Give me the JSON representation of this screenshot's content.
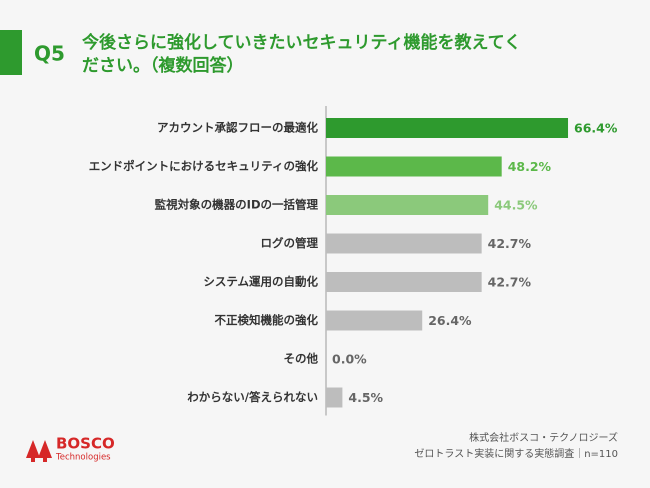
{
  "chart_data": {
    "type": "bar",
    "orientation": "horizontal",
    "label": "Q5",
    "title": [
      "今後さらに強化していきたいセキュリティ機能を教えてく",
      "ださい。（複数回答）"
    ],
    "categories": [
      "アカウント承認フローの最適化",
      "エンドポイントにおけるセキュリティの強化",
      "監視対象の機器のIDの一括管理",
      "ログの管理",
      "システム運用の自動化",
      "不正検知機能の強化",
      "その他",
      "わからない/答えられない"
    ],
    "values": [
      66.4,
      48.2,
      44.5,
      42.7,
      42.7,
      26.4,
      0.0,
      4.5
    ],
    "value_labels": [
      "66.4%",
      "48.2%",
      "44.5%",
      "42.7%",
      "42.7%",
      "26.4%",
      "0.0%",
      "4.5%"
    ],
    "colors": [
      "#2e9a2e",
      "#5cb84a",
      "#8bc97b",
      "#bdbdbd",
      "#bdbdbd",
      "#bdbdbd",
      "#bdbdbd",
      "#bdbdbd"
    ],
    "label_colors": [
      "#2e9a2e",
      "#5cb84a",
      "#8bc97b",
      "#666666",
      "#666666",
      "#666666",
      "#666666",
      "#666666"
    ],
    "xlim": [
      0,
      80
    ]
  },
  "logo": {
    "name": "BOSCO",
    "sub": "Technologies"
  },
  "source": [
    "株式会社ボスコ・テクノロジーズ",
    "ゼロトラスト実装に関する実態調査｜n=110"
  ]
}
